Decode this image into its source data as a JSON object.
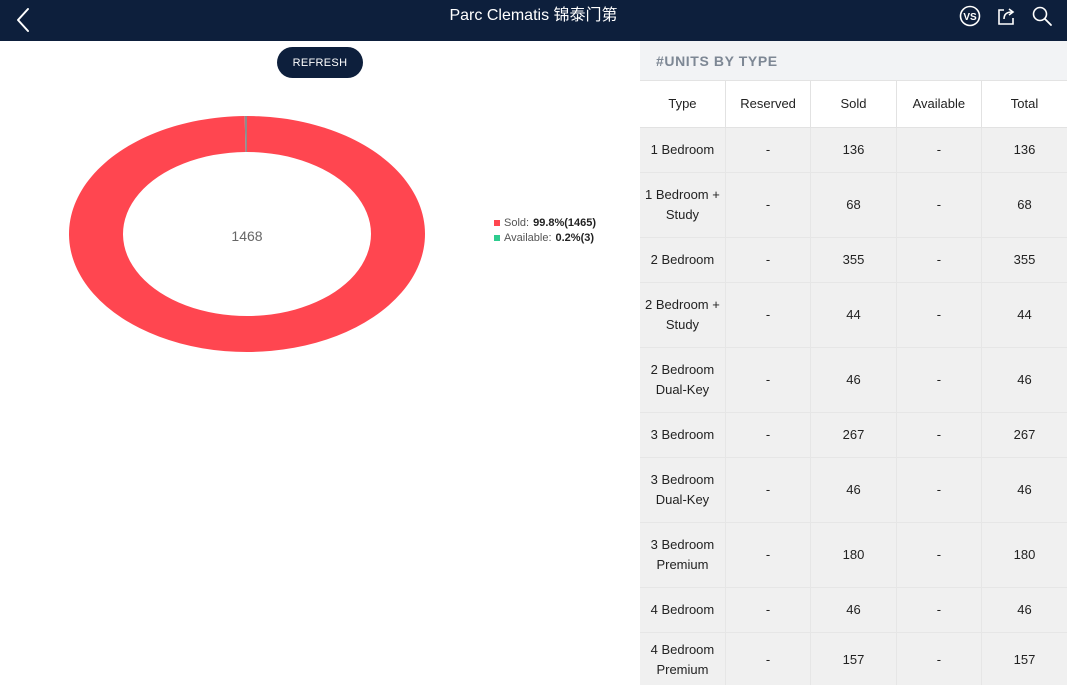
{
  "header": {
    "title": "Parc Clematis 锦泰门第",
    "vs_label": "VS"
  },
  "left": {
    "refresh_label": "REFRESH",
    "donut": {
      "center_text": "1468",
      "colors": {
        "sold": "#ff4650",
        "available": "#2ecc8f"
      }
    },
    "legend": [
      {
        "label": "Sold:",
        "value": "99.8%(1465)"
      },
      {
        "label": "Available:",
        "value": "0.2%(3)"
      }
    ]
  },
  "chart_data": {
    "type": "pie",
    "categories": [
      "Sold",
      "Available"
    ],
    "values": [
      1465,
      3
    ],
    "percent": [
      99.8,
      0.2
    ]
  },
  "right": {
    "section_title": "#UNITS BY TYPE",
    "columns": [
      "Type",
      "Reserved",
      "Sold",
      "Available",
      "Total"
    ],
    "rows": [
      [
        "1 Bedroom",
        "-",
        "136",
        "-",
        "136"
      ],
      [
        "1 Bedroom + Study",
        "-",
        "68",
        "-",
        "68"
      ],
      [
        "2 Bedroom",
        "-",
        "355",
        "-",
        "355"
      ],
      [
        "2 Bedroom + Study",
        "-",
        "44",
        "-",
        "44"
      ],
      [
        "2 Bedroom Dual-Key",
        "-",
        "46",
        "-",
        "46"
      ],
      [
        "3 Bedroom",
        "-",
        "267",
        "-",
        "267"
      ],
      [
        "3 Bedroom Dual-Key",
        "-",
        "46",
        "-",
        "46"
      ],
      [
        "3 Bedroom Premium",
        "-",
        "180",
        "-",
        "180"
      ],
      [
        "4 Bedroom",
        "-",
        "46",
        "-",
        "46"
      ],
      [
        "4 Bedroom Premium",
        "-",
        "157",
        "-",
        "157"
      ]
    ]
  }
}
